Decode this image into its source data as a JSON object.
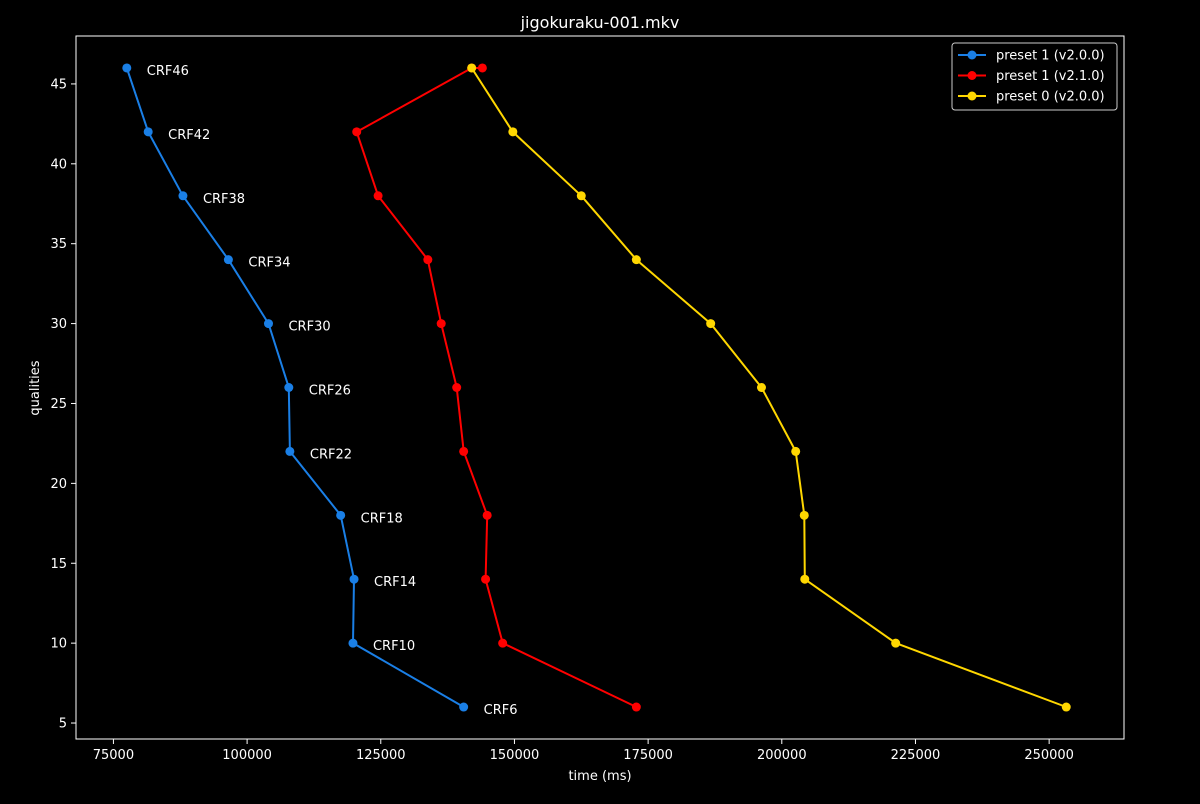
{
  "chart_data": {
    "type": "line",
    "title": "jigokuraku-001.mkv",
    "xlabel": "time (ms)",
    "ylabel": "qualities",
    "xlim": [
      68000,
      264000
    ],
    "ylim": [
      4,
      48
    ],
    "x_ticks": [
      75000,
      100000,
      125000,
      150000,
      175000,
      200000,
      225000,
      250000
    ],
    "y_ticks": [
      5,
      10,
      15,
      20,
      25,
      30,
      35,
      40,
      45
    ],
    "x_tick_labels": [
      "75000",
      "100000",
      "125000",
      "150000",
      "175000",
      "200000",
      "225000",
      "250000"
    ],
    "y_tick_labels": [
      "5",
      "10",
      "15",
      "20",
      "25",
      "30",
      "35",
      "40",
      "45"
    ],
    "grid": false,
    "legend_position": "top-right",
    "background": "#000000",
    "foreground": "#ffffff",
    "series": [
      {
        "name": "preset 1 (v2.0.0)",
        "color": "#1a7fe6",
        "marker": "circle",
        "points": [
          {
            "x": 77500,
            "y": 46,
            "label": "CRF46"
          },
          {
            "x": 81500,
            "y": 42,
            "label": "CRF42"
          },
          {
            "x": 88000,
            "y": 38,
            "label": "CRF38"
          },
          {
            "x": 96500,
            "y": 34,
            "label": "CRF34"
          },
          {
            "x": 104000,
            "y": 30,
            "label": "CRF30"
          },
          {
            "x": 107800,
            "y": 26,
            "label": "CRF26"
          },
          {
            "x": 108000,
            "y": 22,
            "label": "CRF22"
          },
          {
            "x": 117500,
            "y": 18,
            "label": "CRF18"
          },
          {
            "x": 120000,
            "y": 14,
            "label": "CRF14"
          },
          {
            "x": 119800,
            "y": 10,
            "label": "CRF10"
          },
          {
            "x": 140500,
            "y": 6,
            "label": "CRF6"
          }
        ]
      },
      {
        "name": "preset 1 (v2.1.0)",
        "color": "#ff0000",
        "marker": "circle",
        "points": [
          {
            "x": 144000,
            "y": 46
          },
          {
            "x": 142000,
            "y": 46
          },
          {
            "x": 120500,
            "y": 42
          },
          {
            "x": 124500,
            "y": 38
          },
          {
            "x": 133800,
            "y": 34
          },
          {
            "x": 136300,
            "y": 30
          },
          {
            "x": 139200,
            "y": 26
          },
          {
            "x": 140500,
            "y": 22
          },
          {
            "x": 144900,
            "y": 18
          },
          {
            "x": 144600,
            "y": 14
          },
          {
            "x": 147800,
            "y": 10
          },
          {
            "x": 172800,
            "y": 6
          }
        ]
      },
      {
        "name": "preset 0 (v2.0.0)",
        "color": "#ffd700",
        "marker": "circle",
        "points": [
          {
            "x": 142000,
            "y": 46
          },
          {
            "x": 149700,
            "y": 42
          },
          {
            "x": 162500,
            "y": 38
          },
          {
            "x": 172800,
            "y": 34
          },
          {
            "x": 186700,
            "y": 30
          },
          {
            "x": 196200,
            "y": 26
          },
          {
            "x": 202600,
            "y": 22
          },
          {
            "x": 204200,
            "y": 18
          },
          {
            "x": 204300,
            "y": 14
          },
          {
            "x": 221300,
            "y": 10
          },
          {
            "x": 253200,
            "y": 6
          }
        ]
      }
    ]
  }
}
